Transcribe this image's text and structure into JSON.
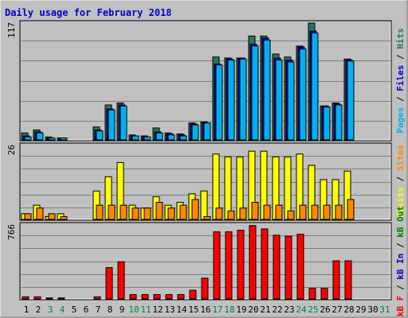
{
  "title": "Daily usage for February 2018",
  "colors": {
    "background": "#C0C0C0",
    "panel_bg": "#C0C0C0",
    "title_color": "#0000CC",
    "pages": "#1F7A5C",
    "files": "#0000CC",
    "hits": "#00B0F0",
    "visits": "#FFFF00",
    "sites": "#FF8800",
    "kbin": "#0000CC",
    "kbout": "#008000",
    "kbf": "#FF0000",
    "weekday_label": "#000000",
    "weekend_label": "#008040"
  },
  "x_labels": [
    "1",
    "2",
    "3",
    "4",
    "5",
    "6",
    "7",
    "8",
    "9",
    "10",
    "11",
    "12",
    "13",
    "14",
    "15",
    "16",
    "17",
    "18",
    "19",
    "20",
    "21",
    "22",
    "23",
    "24",
    "25",
    "26",
    "27",
    "28",
    "29",
    "30",
    "31"
  ],
  "weekend_days": [
    "3",
    "4",
    "10",
    "11",
    "17",
    "18",
    "24",
    "25",
    "31"
  ],
  "chart_data": [
    {
      "type": "bar",
      "panel": "top",
      "ymax_label": "117",
      "ylim": [
        0,
        117
      ],
      "side_legend": [
        {
          "text": "Pages",
          "color": "#00B0F0"
        },
        {
          "text": " / ",
          "color": "#000000"
        },
        {
          "text": "Files",
          "color": "#0000CC"
        },
        {
          "text": " / ",
          "color": "#000000"
        },
        {
          "text": "Hits",
          "color": "#1F7A5C"
        }
      ],
      "categories": [
        "1",
        "2",
        "3",
        "4",
        "5",
        "6",
        "7",
        "8",
        "9",
        "10",
        "11",
        "12",
        "13",
        "14",
        "15",
        "16",
        "17",
        "18",
        "19",
        "20",
        "21",
        "22",
        "23",
        "24",
        "25",
        "26",
        "27",
        "28",
        "29",
        "30",
        "31"
      ],
      "series": [
        {
          "name": "Hits",
          "values": [
            7,
            10,
            3,
            2,
            0,
            0,
            13,
            35,
            37,
            5,
            4,
            12,
            7,
            6,
            17,
            18,
            83,
            82,
            82,
            104,
            104,
            86,
            83,
            94,
            117,
            34,
            37,
            81,
            0,
            0,
            0
          ]
        },
        {
          "name": "Files",
          "values": [
            4,
            8,
            2,
            2,
            0,
            0,
            10,
            31,
            35,
            4,
            3,
            8,
            6,
            5,
            16,
            17,
            76,
            81,
            82,
            96,
            102,
            82,
            80,
            93,
            109,
            34,
            36,
            80,
            0,
            0,
            0
          ]
        },
        {
          "name": "Pages",
          "values": [
            3,
            7,
            2,
            2,
            0,
            0,
            9,
            30,
            34,
            4,
            3,
            7,
            5,
            4,
            15,
            17,
            75,
            80,
            81,
            94,
            100,
            80,
            78,
            91,
            107,
            33,
            35,
            79,
            0,
            0,
            0
          ]
        }
      ]
    },
    {
      "type": "bar",
      "panel": "middle",
      "ymax_label": "26",
      "ylim": [
        0,
        26
      ],
      "side_legend": [
        {
          "text": "Visits",
          "color": "#FFFF00"
        },
        {
          "text": " / ",
          "color": "#000000"
        },
        {
          "text": "Sites",
          "color": "#FF8800"
        }
      ],
      "categories": [
        "1",
        "2",
        "3",
        "4",
        "5",
        "6",
        "7",
        "8",
        "9",
        "10",
        "11",
        "12",
        "13",
        "14",
        "15",
        "16",
        "17",
        "18",
        "19",
        "20",
        "21",
        "22",
        "23",
        "24",
        "25",
        "26",
        "27",
        "28",
        "29",
        "30",
        "31"
      ],
      "series": [
        {
          "name": "Visits",
          "values": [
            2,
            5,
            1,
            2,
            0,
            0,
            10,
            15,
            20,
            5,
            4,
            8,
            5,
            6,
            9,
            10,
            23,
            22,
            22,
            24,
            24,
            22,
            22,
            23,
            19,
            14,
            14,
            17,
            0,
            0,
            0
          ]
        },
        {
          "name": "Sites",
          "values": [
            2,
            4,
            2,
            1,
            0,
            0,
            5,
            5,
            5,
            4,
            4,
            6,
            4,
            5,
            7,
            1,
            4,
            3,
            4,
            6,
            5,
            5,
            3,
            5,
            5,
            5,
            5,
            7,
            0,
            0,
            0
          ]
        }
      ]
    },
    {
      "type": "bar",
      "panel": "bottom",
      "ymax_label": "766",
      "ylim": [
        0,
        766
      ],
      "side_legend": [
        {
          "text": "kB F",
          "color": "#FF0000"
        },
        {
          "text": " / ",
          "color": "#000000"
        },
        {
          "text": "kB In",
          "color": "#0000CC"
        },
        {
          "text": " / ",
          "color": "#000000"
        },
        {
          "text": "kB Out",
          "color": "#008000"
        }
      ],
      "categories": [
        "1",
        "2",
        "3",
        "4",
        "5",
        "6",
        "7",
        "8",
        "9",
        "10",
        "11",
        "12",
        "13",
        "14",
        "15",
        "16",
        "17",
        "18",
        "19",
        "20",
        "21",
        "22",
        "23",
        "24",
        "25",
        "26",
        "27",
        "28",
        "29",
        "30",
        "31"
      ],
      "series": [
        {
          "name": "kB F",
          "values": [
            22,
            22,
            10,
            10,
            0,
            0,
            22,
            325,
            385,
            45,
            45,
            45,
            45,
            45,
            90,
            215,
            695,
            695,
            712,
            760,
            725,
            660,
            650,
            670,
            110,
            110,
            395,
            395,
            0,
            0,
            0
          ]
        }
      ]
    }
  ]
}
